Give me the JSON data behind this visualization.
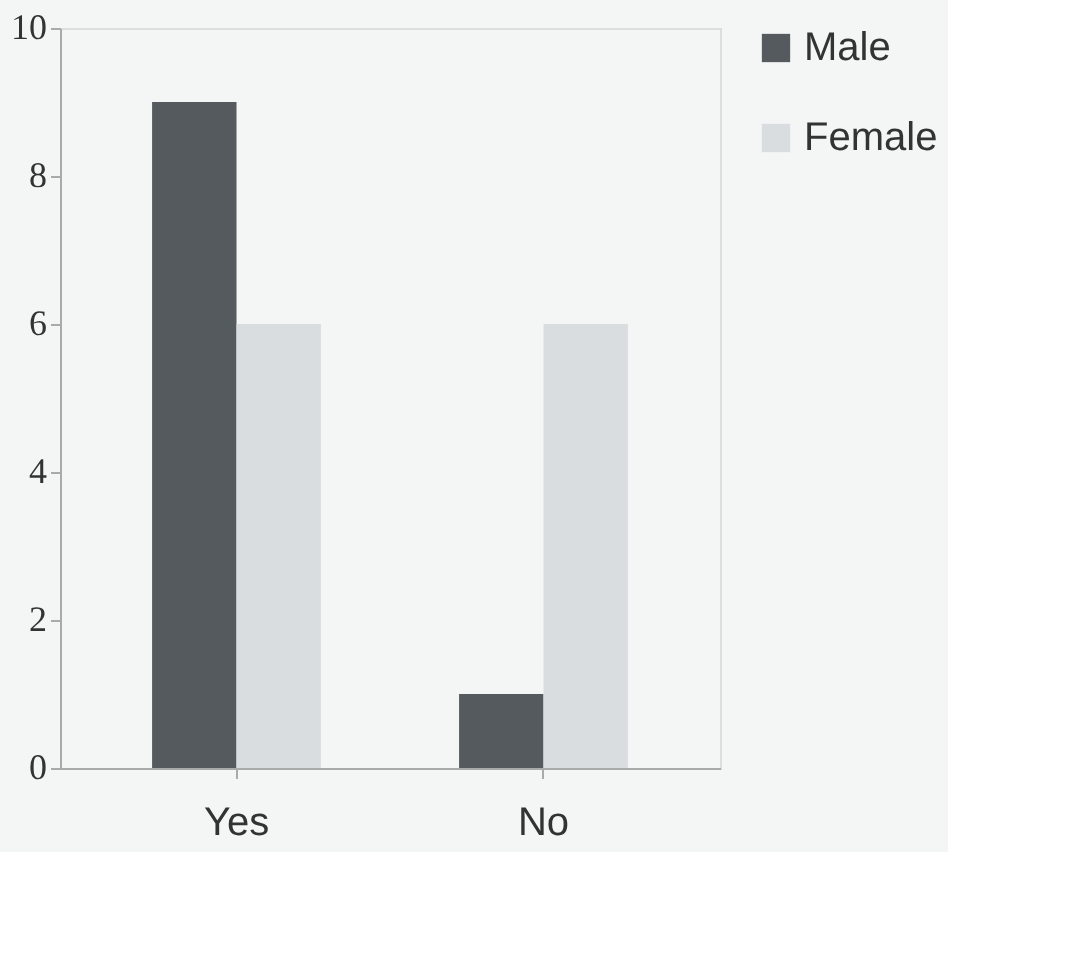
{
  "chart_data": {
    "type": "bar",
    "categories": [
      "Yes",
      "No"
    ],
    "series": [
      {
        "name": "Male",
        "color": "#555a5e",
        "values": [
          9,
          1
        ]
      },
      {
        "name": "Female",
        "color": "#d9dde0",
        "values": [
          6,
          6
        ]
      }
    ],
    "ylim": [
      0,
      10
    ],
    "yticks": [
      0,
      2,
      4,
      6,
      8,
      10
    ],
    "legend": "right"
  }
}
